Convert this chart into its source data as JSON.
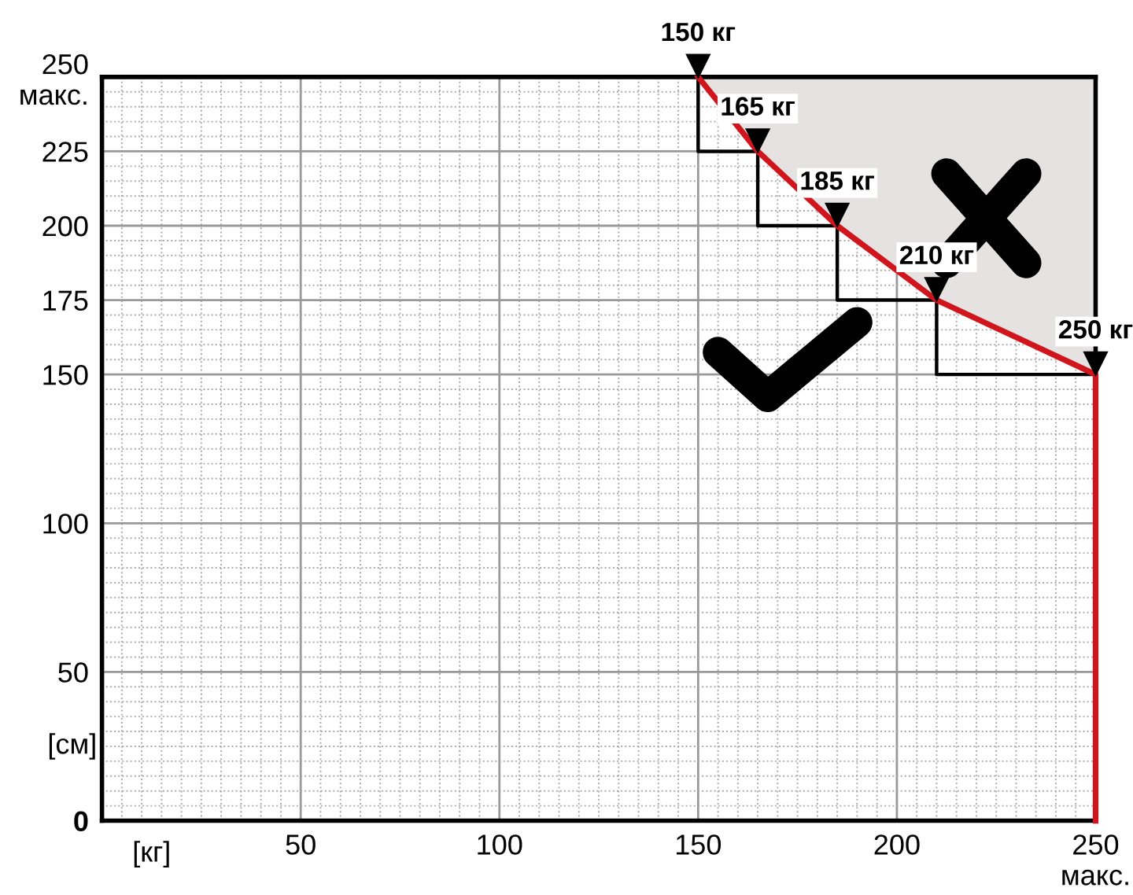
{
  "chart_data": {
    "type": "line",
    "xlabel": "[кг]",
    "ylabel": "[см]",
    "x": [
      150,
      165,
      185,
      210,
      250,
      250
    ],
    "series": [
      {
        "type": "step",
        "color": "#000000",
        "x": [
          150,
          150,
          165,
          165,
          185,
          185,
          210,
          210,
          250
        ],
        "values": [
          250,
          225,
          225,
          200,
          200,
          175,
          175,
          150,
          150
        ]
      },
      {
        "color": "#d0161c",
        "values": [
          250,
          225,
          200,
          175,
          150,
          0
        ],
        "lower": [
          250,
          225,
          200,
          175,
          150,
          null
        ],
        "upper": [
          250,
          250,
          250,
          250,
          250,
          null
        ]
      }
    ],
    "annotations": [
      {
        "text": "150 кг",
        "x": 150,
        "y": 250
      },
      {
        "text": "165 кг",
        "x": 165,
        "y": 225
      },
      {
        "text": "185 кг",
        "x": 185,
        "y": 200
      },
      {
        "text": "210 кг",
        "x": 210,
        "y": 175
      },
      {
        "text": "250 кг",
        "x": 250,
        "y": 150
      }
    ],
    "xlim": [
      0,
      250
    ],
    "ylim": [
      0,
      250
    ],
    "xticks": [
      {
        "value": 0,
        "label": null
      },
      50,
      100,
      150,
      200,
      {
        "value": 250,
        "label": "250\nмакс."
      }
    ],
    "yticks": [
      {
        "value": 0,
        "label": "0"
      },
      50,
      100,
      150,
      175,
      200,
      225,
      {
        "value": 250,
        "label": "250\nмакс."
      }
    ],
    "grid": true,
    "marker": "none",
    "line_style": "solid"
  }
}
